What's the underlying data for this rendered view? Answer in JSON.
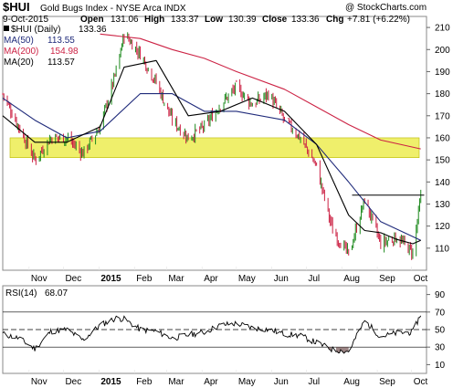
{
  "header": {
    "ticker": "$HUI",
    "name": "Gold Bugs Index - NYSE Arca INDX",
    "watermark": "@ StockCharts.com",
    "date": "9-Oct-2015",
    "open_label": "Open",
    "open": "131.06",
    "high_label": "High",
    "high": "133.37",
    "low_label": "Low",
    "low": "130.39",
    "close_label": "Close",
    "close": "133.36",
    "chg_label": "Chg",
    "chg": "+7.81 (+6.22%)"
  },
  "legend": [
    {
      "label": "$HUI (Daily)",
      "value": "133.36",
      "color": "#000000"
    },
    {
      "label": "MA(50)",
      "value": "113.55",
      "color": "#1f2a7a"
    },
    {
      "label": "MA(200)",
      "value": "154.98",
      "color": "#cc2244"
    },
    {
      "label": "MA(20)",
      "value": "113.57",
      "color": "#000000"
    }
  ],
  "rsi_panel": {
    "label": "RSI(14)",
    "value": "68.07",
    "yticks": [
      "90",
      "70",
      "50",
      "30",
      "10"
    ]
  },
  "colors": {
    "up": "#1e8a1e",
    "down": "#cc2244",
    "highlight": "#eaea3a",
    "ma50": "#1f2a7a",
    "ma200": "#cc2244",
    "ma20": "#000000",
    "rsi_fill": "#8a6f6f"
  },
  "chart_data": [
    {
      "type": "line",
      "title": "$HUI Gold Bugs Index - NYSE Arca INDX",
      "ylim": [
        100,
        215
      ],
      "yticks": [
        110,
        120,
        130,
        140,
        150,
        160,
        170,
        180,
        190,
        200,
        210
      ],
      "xticks": [
        "Nov",
        "Dec",
        "2015",
        "Feb",
        "Mar",
        "Apr",
        "May",
        "Jun",
        "Jul",
        "Aug",
        "Sep",
        "Oct"
      ],
      "highlight_band": [
        151,
        160
      ],
      "resistance_line": {
        "y": 134,
        "from": "Aug 2015",
        "to": "Oct 2015"
      },
      "series": [
        {
          "name": "$HUI (Daily)",
          "x": [
            "Oct 9 2014",
            "Oct 23",
            "Nov 6",
            "Nov 20",
            "Dec 4",
            "Dec 18",
            "Jan 2 2015",
            "Jan 16",
            "Jan 23",
            "Feb 6",
            "Feb 20",
            "Mar 6",
            "Mar 20",
            "Apr 3",
            "Apr 17",
            "May 1",
            "May 15",
            "May 29",
            "Jun 12",
            "Jun 26",
            "Jul 10",
            "Jul 24",
            "Aug 7",
            "Aug 21",
            "Sep 4",
            "Sep 18",
            "Oct 2",
            "Oct 9 2015"
          ],
          "values": [
            180,
            165,
            150,
            160,
            160,
            153,
            165,
            190,
            207,
            198,
            185,
            168,
            160,
            165,
            175,
            183,
            175,
            180,
            168,
            160,
            147,
            118,
            107,
            132,
            112,
            115,
            108,
            133
          ]
        },
        {
          "name": "MA(50)",
          "x": [
            "Oct 9 2014",
            "Nov 6",
            "Dec 4",
            "Jan 2 2015",
            "Feb 6",
            "Mar 6",
            "Apr 3",
            "May 1",
            "Jun 12",
            "Jul 10",
            "Aug 7",
            "Sep 4",
            "Oct 9 2015"
          ],
          "values": [
            178,
            168,
            160,
            163,
            180,
            180,
            172,
            172,
            168,
            157,
            140,
            122,
            113.55
          ]
        },
        {
          "name": "MA(200)",
          "x": [
            "Jan 2 2015",
            "Feb 6",
            "Mar 6",
            "Apr 3",
            "May 1",
            "Jun 12",
            "Jul 10",
            "Aug 7",
            "Sep 4",
            "Oct 9 2015"
          ],
          "values": [
            207,
            205,
            200,
            196,
            190,
            182,
            174,
            166,
            159,
            154.98
          ]
        },
        {
          "name": "MA(20)",
          "x": [
            "Oct 9 2014",
            "Nov 6",
            "Dec 4",
            "Jan 2 2015",
            "Jan 23",
            "Feb 20",
            "Mar 20",
            "Apr 17",
            "May 15",
            "Jun 12",
            "Jul 10",
            "Aug 7",
            "Aug 21",
            "Sep 4",
            "Sep 18",
            "Oct 2",
            "Oct 9 2015"
          ],
          "values": [
            170,
            158,
            158,
            165,
            192,
            195,
            170,
            172,
            178,
            172,
            157,
            125,
            118,
            117,
            114,
            112,
            113.57
          ]
        }
      ]
    },
    {
      "type": "line",
      "title": "RSI(14)",
      "ylim": [
        0,
        100
      ],
      "yticks": [
        10,
        30,
        50,
        70,
        90
      ],
      "reference_lines": [
        30,
        50,
        70
      ],
      "series": [
        {
          "name": "RSI(14)",
          "x": [
            "Oct 9 2014",
            "Oct 23",
            "Nov 6",
            "Nov 20",
            "Dec 4",
            "Dec 18",
            "Jan 2 2015",
            "Jan 16",
            "Jan 23",
            "Feb 6",
            "Feb 20",
            "Mar 6",
            "Mar 20",
            "Apr 3",
            "Apr 17",
            "May 1",
            "May 15",
            "May 29",
            "Jun 12",
            "Jun 26",
            "Jul 10",
            "Jul 24",
            "Aug 7",
            "Aug 21",
            "Sep 4",
            "Sep 18",
            "Oct 2",
            "Oct 9 2015"
          ],
          "values": [
            45,
            40,
            28,
            48,
            50,
            38,
            55,
            63,
            62,
            50,
            48,
            40,
            44,
            47,
            55,
            57,
            52,
            50,
            45,
            43,
            35,
            27,
            25,
            60,
            42,
            46,
            47,
            68.07
          ]
        }
      ]
    }
  ]
}
